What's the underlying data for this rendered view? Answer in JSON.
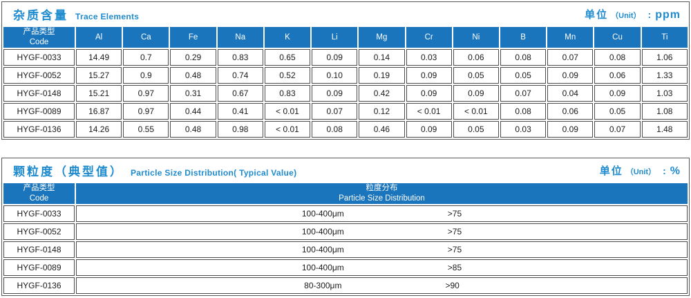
{
  "trace": {
    "title_cn": "杂质含量",
    "title_en": "Trace Elements",
    "unit_label_cn": "单位",
    "unit_label_en": "（Unit）",
    "unit_colon": ":",
    "unit_value": "ppm",
    "code_header_cn": "产品类型",
    "code_header_en": "Code",
    "columns": [
      "Al",
      "Ca",
      "Fe",
      "Na",
      "K",
      "Li",
      "Mg",
      "Cr",
      "Ni",
      "B",
      "Mn",
      "Cu",
      "Ti"
    ],
    "rows": [
      {
        "code": "HYGF-0033",
        "values": [
          "14.49",
          "0.7",
          "0.29",
          "0.83",
          "0.65",
          "0.09",
          "0.14",
          "0.03",
          "0.06",
          "0.08",
          "0.07",
          "0.08",
          "1.06"
        ]
      },
      {
        "code": "HYGF-0052",
        "values": [
          "15.27",
          "0.9",
          "0.48",
          "0.74",
          "0.52",
          "0.10",
          "0.19",
          "0.09",
          "0.05",
          "0.05",
          "0.09",
          "0.06",
          "1.33"
        ]
      },
      {
        "code": "HYGF-0148",
        "values": [
          "15.21",
          "0.97",
          "0.31",
          "0.67",
          "0.83",
          "0.09",
          "0.42",
          "0.09",
          "0.09",
          "0.07",
          "0.04",
          "0.09",
          "1.03"
        ]
      },
      {
        "code": "HYGF-0089",
        "values": [
          "16.87",
          "0.97",
          "0.44",
          "0.41",
          "< 0.01",
          "0.07",
          "0.12",
          "< 0.01",
          "< 0.01",
          "0.08",
          "0.06",
          "0.05",
          "1.08"
        ]
      },
      {
        "code": "HYGF-0136",
        "values": [
          "14.26",
          "0.55",
          "0.48",
          "0.98",
          "< 0.01",
          "0.08",
          "0.46",
          "0.09",
          "0.05",
          "0.03",
          "0.09",
          "0.07",
          "1.48"
        ]
      }
    ]
  },
  "particle": {
    "title_cn": "颗粒度（典型值）",
    "title_en": "Particle Size Distribution( Typical Value)",
    "unit_label_cn": "单位",
    "unit_label_en": "（Unit）",
    "unit_colon": ":",
    "unit_value": "%",
    "code_header_cn": "产品类型",
    "code_header_en": "Code",
    "dist_header_cn": "粒度分布",
    "dist_header_en": "Particle Size Distribution",
    "rows": [
      {
        "code": "HYGF-0033",
        "range": "100-400μm",
        "value": ">75"
      },
      {
        "code": "HYGF-0052",
        "range": "100-400μm",
        "value": ">75"
      },
      {
        "code": "HYGF-0148",
        "range": "100-400μm",
        "value": ">75"
      },
      {
        "code": "HYGF-0089",
        "range": "100-400μm",
        "value": ">85"
      },
      {
        "code": "HYGF-0136",
        "range": "80-300μm",
        "value": ">90"
      }
    ]
  }
}
